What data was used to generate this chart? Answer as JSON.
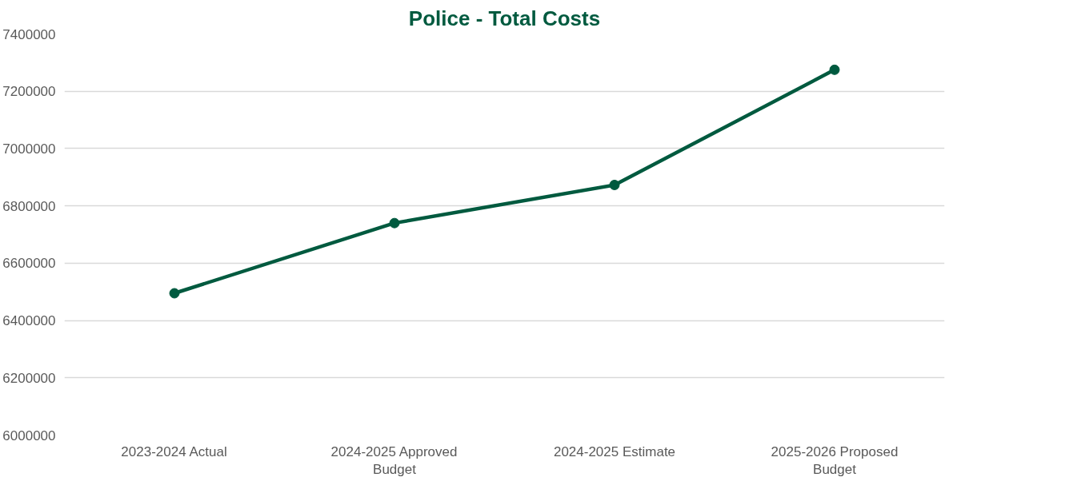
{
  "chart_data": {
    "type": "line",
    "title": "Police - Total Costs",
    "categories": [
      "2023-2024 Actual",
      "2024-2025 Approved Budget",
      "2024-2025 Estimate",
      "2025-2026 Proposed Budget"
    ],
    "series": [
      {
        "color": "#005a3f",
        "values": [
          6495000,
          6740000,
          6873000,
          7275000
        ]
      }
    ],
    "ylim": [
      6000000,
      7400000
    ],
    "yticks": [
      6000000,
      6200000,
      6400000,
      6600000,
      6800000,
      7000000,
      7200000,
      7400000
    ],
    "grid": "y",
    "marker": "circle",
    "line_style": "solid"
  }
}
